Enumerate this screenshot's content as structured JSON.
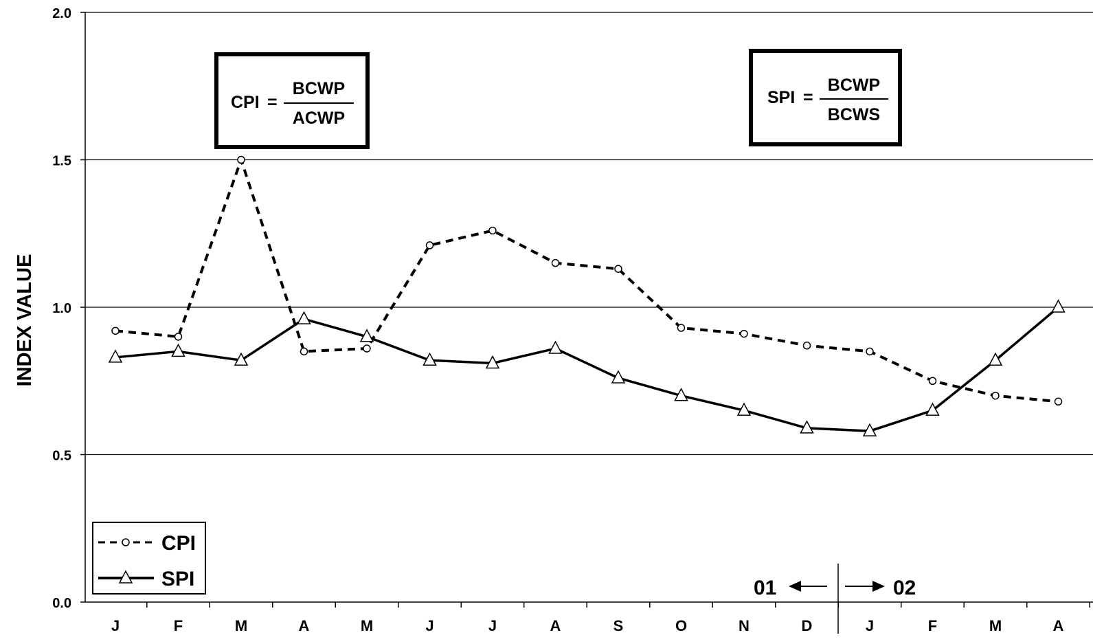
{
  "chart_data": {
    "type": "line",
    "ylabel": "INDEX VALUE",
    "ylim": [
      0.0,
      2.0
    ],
    "yticks": [
      "0.0",
      "0.5",
      "1.0",
      "1.5",
      "2.0"
    ],
    "categories": [
      "J",
      "F",
      "M",
      "A",
      "M",
      "J",
      "J",
      "A",
      "S",
      "O",
      "N",
      "D",
      "J",
      "F",
      "M",
      "A"
    ],
    "grid": "horizontal",
    "legend_position": "bottom-left",
    "series": [
      {
        "name": "CPI",
        "style": "dashed, open circle markers",
        "values": [
          0.92,
          0.9,
          1.5,
          0.85,
          0.86,
          1.21,
          1.26,
          1.15,
          1.13,
          0.93,
          0.91,
          0.87,
          0.85,
          0.75,
          0.7,
          0.68
        ]
      },
      {
        "name": "SPI",
        "style": "solid, open triangle markers",
        "values": [
          0.83,
          0.85,
          0.82,
          0.96,
          0.9,
          0.82,
          0.81,
          0.86,
          0.76,
          0.7,
          0.65,
          0.59,
          0.58,
          0.65,
          0.82,
          1.0
        ]
      }
    ],
    "formulas": [
      {
        "lhs": "CPI",
        "eq": "=",
        "numerator": "BCWP",
        "denominator": "ACWP"
      },
      {
        "lhs": "SPI",
        "eq": "=",
        "numerator": "BCWP",
        "denominator": "BCWS"
      }
    ],
    "year_marker": {
      "left": "01",
      "right": "02"
    }
  }
}
